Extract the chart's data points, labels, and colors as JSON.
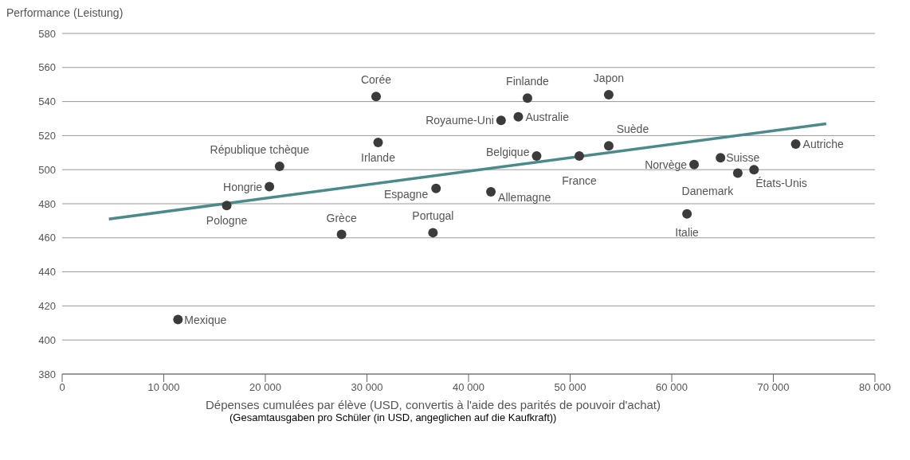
{
  "chart_data": {
    "type": "scatter",
    "xlabel": "Dépenses cumulées par élève (USD, convertis à l'aide des parités de pouvoir d'achat)",
    "ylabel": "Performance (Leistung)",
    "xlim": [
      0,
      80000
    ],
    "xticks": [
      {
        "value": 0,
        "label": "0"
      },
      {
        "value": 10000,
        "label": "10 000"
      },
      {
        "value": 20000,
        "label": "20 000"
      },
      {
        "value": 30000,
        "label": "30 000"
      },
      {
        "value": 40000,
        "label": "40 000"
      },
      {
        "value": 50000,
        "label": "50 000"
      },
      {
        "value": 60000,
        "label": "60 000"
      },
      {
        "value": 70000,
        "label": "70 000"
      },
      {
        "value": 80000,
        "label": "80 000"
      }
    ],
    "ylim": [
      380,
      580
    ],
    "yticks": [
      380,
      400,
      420,
      440,
      460,
      480,
      500,
      520,
      540,
      560,
      580
    ],
    "grid": "y",
    "series": [
      {
        "marker": "circle",
        "color": "#3d3a3c",
        "x": [
          11400,
          16200,
          20400,
          21400,
          27500,
          30900,
          31100,
          36800,
          36500,
          43200,
          44900,
          45800,
          53800,
          46700,
          50900,
          53800,
          42200,
          62200,
          61500,
          64800,
          66500,
          68100,
          72200
        ],
        "values": [
          412,
          479,
          490,
          502,
          462,
          543,
          516,
          489,
          463,
          529,
          531,
          542,
          544,
          508,
          508,
          514,
          487,
          503,
          474,
          507,
          498,
          500,
          515
        ]
      },
      {
        "type": "line",
        "color": "#4a8a8a",
        "x": [
          4600,
          75200
        ],
        "values": [
          471,
          527
        ]
      }
    ],
    "annotations": [
      {
        "text": "Mexique",
        "x": 11400,
        "y": 412
      },
      {
        "text": "Pologne",
        "x": 16200,
        "y": 479
      },
      {
        "text": "Hongrie",
        "x": 20400,
        "y": 490
      },
      {
        "text": "République tchèque",
        "x": 21400,
        "y": 502
      },
      {
        "text": "Grèce",
        "x": 27500,
        "y": 462
      },
      {
        "text": "Corée",
        "x": 30900,
        "y": 543
      },
      {
        "text": "Irlande",
        "x": 31100,
        "y": 516
      },
      {
        "text": "Espagne",
        "x": 36800,
        "y": 489
      },
      {
        "text": "Portugal",
        "x": 36500,
        "y": 463
      },
      {
        "text": "Royaume-Uni",
        "x": 43200,
        "y": 529
      },
      {
        "text": "Australie",
        "x": 44900,
        "y": 531
      },
      {
        "text": "Finlande",
        "x": 45800,
        "y": 542
      },
      {
        "text": "Japon",
        "x": 53800,
        "y": 544
      },
      {
        "text": "Belgique",
        "x": 46700,
        "y": 508
      },
      {
        "text": "France",
        "x": 50900,
        "y": 508
      },
      {
        "text": "Suède",
        "x": 53800,
        "y": 514
      },
      {
        "text": "Allemagne",
        "x": 42200,
        "y": 487
      },
      {
        "text": "Norvège",
        "x": 62200,
        "y": 503
      },
      {
        "text": "Italie",
        "x": 61500,
        "y": 474
      },
      {
        "text": "Suisse",
        "x": 64800,
        "y": 507
      },
      {
        "text": "Danemark",
        "x": 66500,
        "y": 498
      },
      {
        "text": "États-Unis",
        "x": 68100,
        "y": 500
      },
      {
        "text": "Autriche",
        "x": 72200,
        "y": 515
      },
      "(Gesamtausgaben pro Schüler (in USD, angeglichen auf die Kaufkraft))"
    ]
  }
}
